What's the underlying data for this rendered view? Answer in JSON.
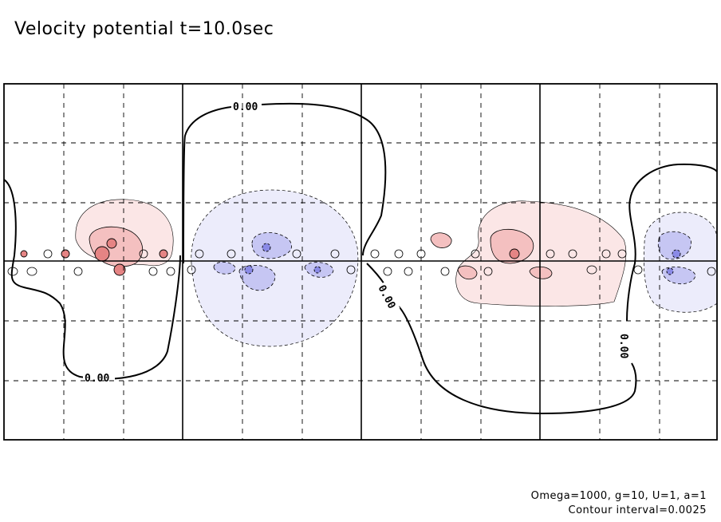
{
  "title": "Velocity potential t=10.0sec",
  "footer": {
    "params": "Omega=1000, g=10, U=1, a=1",
    "contour_interval": "Contour interval=0.0025"
  },
  "colors": {
    "positive": "#e8888a",
    "negative": "#8a8ae6",
    "positive_light": "#fbe6e6",
    "negative_light": "#e9e9fb",
    "contour": "#000000"
  },
  "chart_data": {
    "type": "contour",
    "title": "Velocity potential t=10.0sec",
    "xlabel": "",
    "ylabel": "",
    "grid": true,
    "grid_style": "dashed",
    "major_vertical_divisions": 4,
    "contour_interval": 0.0025,
    "zero_contour_labels": [
      "0.00",
      "0.00",
      "0.00",
      "0.00"
    ],
    "positive_regions": [
      "left-center blob",
      "right-center blob"
    ],
    "negative_regions": [
      "center-left large blob",
      "far-right blob"
    ]
  }
}
